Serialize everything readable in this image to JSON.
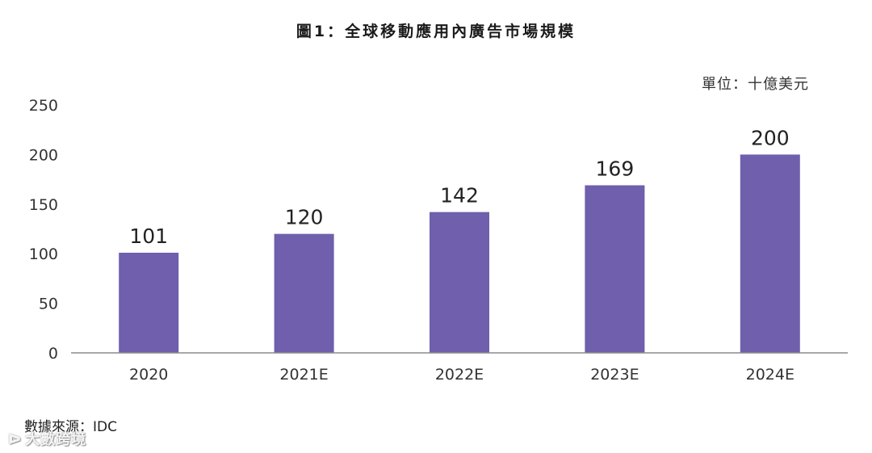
{
  "chart_data": {
    "type": "bar",
    "title": "圖1：全球移動應用內廣告市場規模",
    "unit_label": "單位：十億美元",
    "categories": [
      "2020",
      "2021E",
      "2022E",
      "2023E",
      "2024E"
    ],
    "values": [
      101,
      120,
      142,
      169,
      200
    ],
    "data_labels": [
      "101",
      "120",
      "142",
      "169",
      "200"
    ],
    "ylim": [
      0,
      250
    ],
    "yticks": [
      "0",
      "50",
      "100",
      "150",
      "200",
      "250"
    ],
    "bar_color": "#6f5fac",
    "grid": false,
    "legend": "none",
    "source": "數據來源：IDC"
  },
  "watermark": {
    "text": "大數跨境",
    "icon": "logo-glyph"
  }
}
